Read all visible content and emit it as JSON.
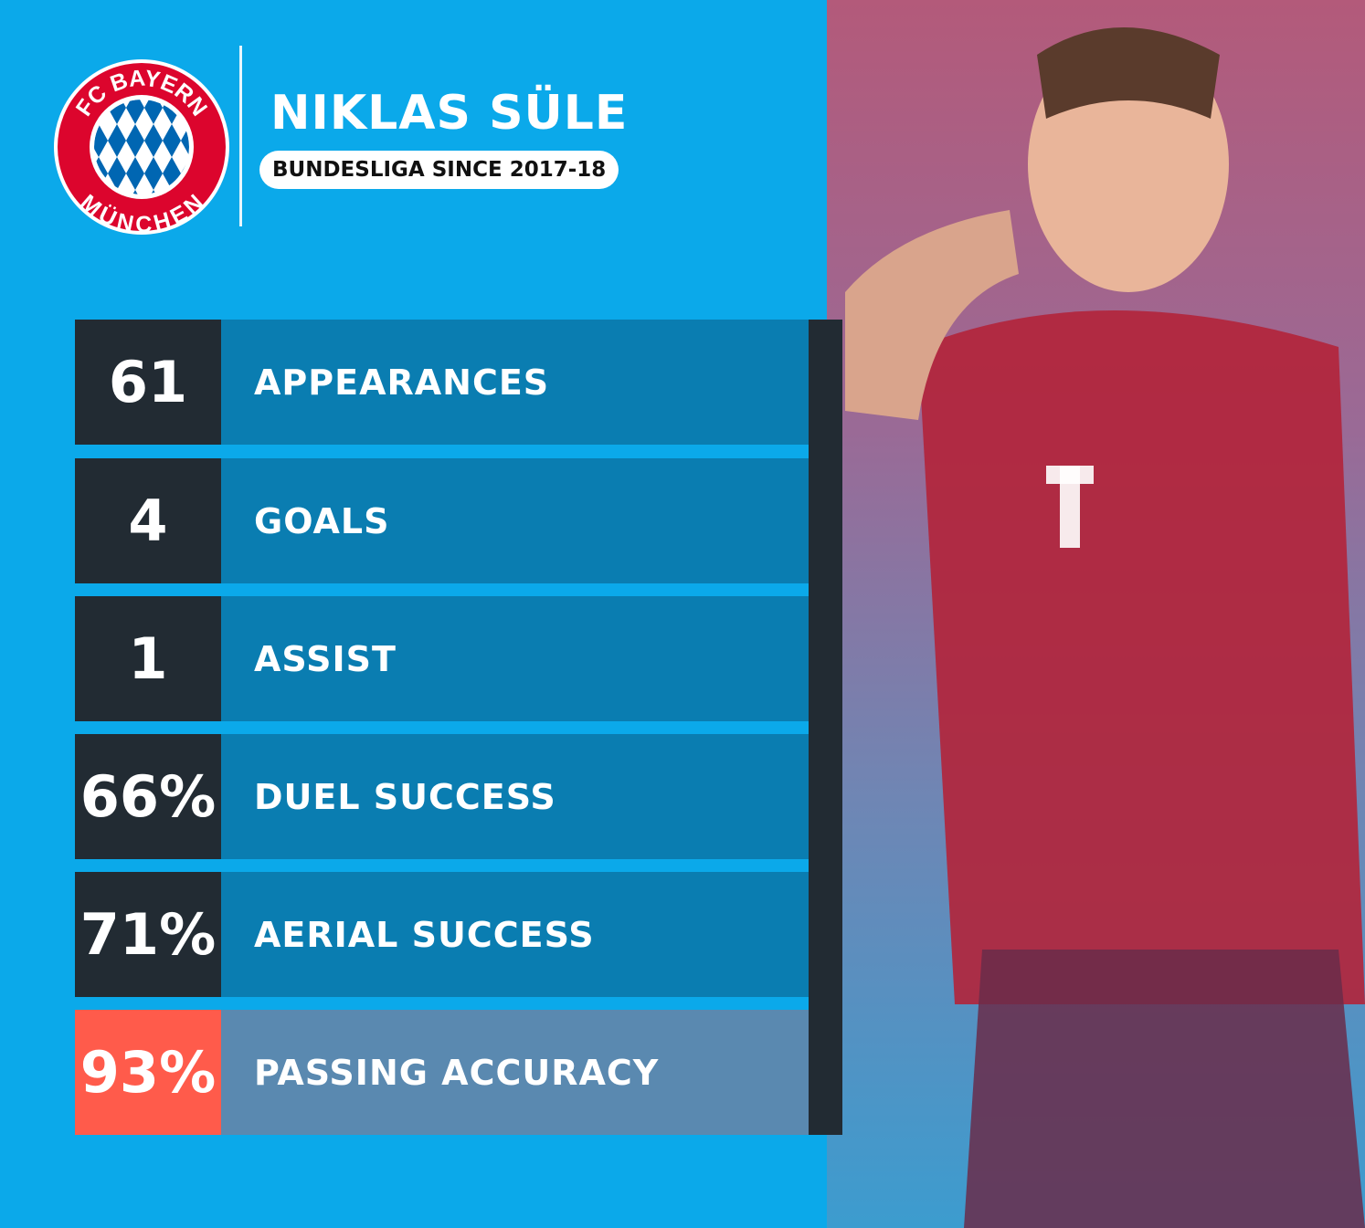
{
  "logo": {
    "top_text": "FC BAYERN",
    "bottom_text": "MÜNCHEN",
    "colors": {
      "red": "#dc052d",
      "blue": "#0066b2"
    }
  },
  "header": {
    "name": "NIKLAS SÜLE",
    "subtitle": "BUNDESLIGA SINCE 2017-18"
  },
  "stats": [
    {
      "value": "61",
      "label": "APPEARANCES"
    },
    {
      "value": "4",
      "label": "GOALS"
    },
    {
      "value": "1",
      "label": "ASSIST"
    },
    {
      "value": "66%",
      "label": "DUEL SUCCESS"
    },
    {
      "value": "71%",
      "label": "AERIAL SUCCESS"
    },
    {
      "value": "93%",
      "label": "PASSING ACCURACY",
      "highlight": true
    }
  ],
  "colors": {
    "background": "#0ba9ea",
    "dark": "#222b33",
    "row": "#0a7db1",
    "highlight_value": "#ff5b4b",
    "highlight_row": "#5a89b0"
  }
}
